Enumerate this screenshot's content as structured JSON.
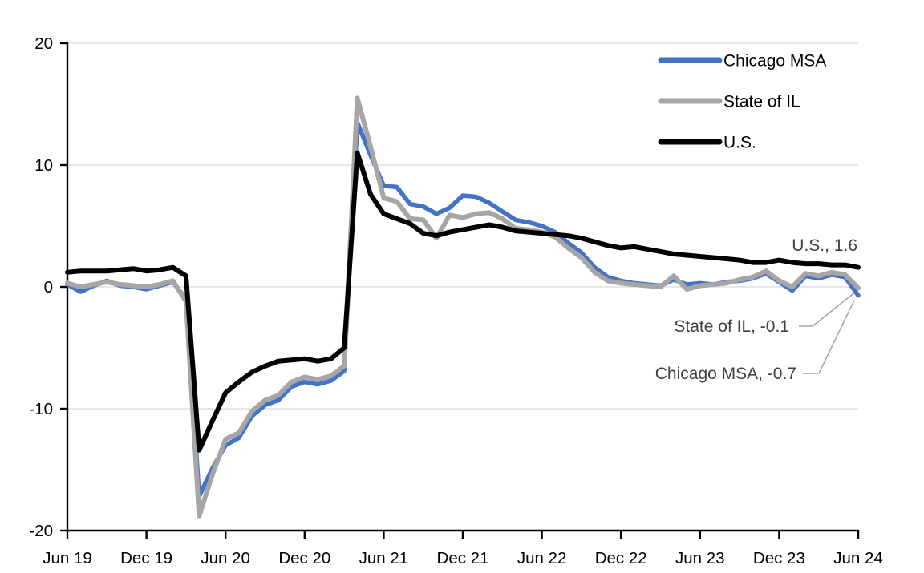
{
  "chart_data": {
    "type": "line",
    "title": "",
    "xlabel": "",
    "ylabel": "",
    "ylim": [
      -20,
      20
    ],
    "y_ticks": [
      20,
      10,
      0,
      -10,
      -20
    ],
    "grid": "horizontal",
    "grid_values": [
      20,
      10,
      0,
      -10
    ],
    "legend_position": "top-right-inside",
    "x_tick_labels": [
      "Jun 19",
      "Dec 19",
      "Jun 20",
      "Dec 20",
      "Jun 21",
      "Dec 21",
      "Jun 22",
      "Dec 22",
      "Jun 23",
      "Dec 23",
      "Jun 24"
    ],
    "x": [
      "Jun-19",
      "Jul-19",
      "Aug-19",
      "Sep-19",
      "Oct-19",
      "Nov-19",
      "Dec-19",
      "Jan-20",
      "Feb-20",
      "Mar-20",
      "Apr-20",
      "May-20",
      "Jun-20",
      "Jul-20",
      "Aug-20",
      "Sep-20",
      "Oct-20",
      "Nov-20",
      "Dec-20",
      "Jan-21",
      "Feb-21",
      "Mar-21",
      "Apr-21",
      "May-21",
      "Jun-21",
      "Jul-21",
      "Aug-21",
      "Sep-21",
      "Oct-21",
      "Nov-21",
      "Dec-21",
      "Jan-22",
      "Feb-22",
      "Mar-22",
      "Apr-22",
      "May-22",
      "Jun-22",
      "Jul-22",
      "Aug-22",
      "Sep-22",
      "Oct-22",
      "Nov-22",
      "Dec-22",
      "Jan-23",
      "Feb-23",
      "Mar-23",
      "Apr-23",
      "May-23",
      "Jun-23",
      "Jul-23",
      "Aug-23",
      "Sep-23",
      "Oct-23",
      "Nov-23",
      "Dec-23",
      "Jan-24",
      "Feb-24",
      "Mar-24",
      "Apr-24",
      "May-24",
      "Jun-24"
    ],
    "series": [
      {
        "name": "Chicago MSA",
        "color": "#4472C4",
        "stroke_width": 5.5,
        "values": [
          0.2,
          -0.4,
          0.1,
          0.5,
          0.1,
          0.0,
          -0.2,
          0.1,
          0.4,
          -1.0,
          -17.2,
          -14.9,
          -13.0,
          -12.4,
          -10.6,
          -9.7,
          -9.3,
          -8.2,
          -7.8,
          -8.0,
          -7.7,
          -6.9,
          13.5,
          10.8,
          8.3,
          8.2,
          6.8,
          6.6,
          6.0,
          6.5,
          7.5,
          7.4,
          6.9,
          6.2,
          5.5,
          5.3,
          5.0,
          4.5,
          3.6,
          2.8,
          1.6,
          0.8,
          0.5,
          0.3,
          0.2,
          0.1,
          0.6,
          0.2,
          0.3,
          0.2,
          0.4,
          0.5,
          0.7,
          1.1,
          0.4,
          -0.3,
          0.9,
          0.7,
          1.0,
          0.8,
          -0.7
        ]
      },
      {
        "name": "State of IL",
        "color": "#A6A6A6",
        "stroke_width": 6,
        "values": [
          0.3,
          0.0,
          0.2,
          0.4,
          0.2,
          0.1,
          0.0,
          0.2,
          0.5,
          -1.2,
          -18.8,
          -15.4,
          -12.5,
          -12.0,
          -10.2,
          -9.3,
          -8.9,
          -7.8,
          -7.4,
          -7.6,
          -7.3,
          -6.5,
          15.5,
          11.5,
          7.3,
          7.0,
          5.6,
          5.5,
          4.0,
          5.9,
          5.7,
          6.0,
          6.1,
          5.6,
          4.8,
          4.7,
          4.5,
          4.1,
          3.2,
          2.4,
          1.2,
          0.5,
          0.3,
          0.2,
          0.1,
          0.0,
          0.9,
          -0.2,
          0.1,
          0.2,
          0.3,
          0.6,
          0.8,
          1.3,
          0.5,
          0.0,
          1.1,
          0.9,
          1.2,
          1.0,
          -0.1
        ]
      },
      {
        "name": "U.S.",
        "color": "#000000",
        "stroke_width": 6,
        "values": [
          1.2,
          1.3,
          1.3,
          1.3,
          1.4,
          1.5,
          1.3,
          1.4,
          1.6,
          0.9,
          -13.4,
          -11.0,
          -8.7,
          -7.8,
          -7.0,
          -6.5,
          -6.1,
          -6.0,
          -5.9,
          -6.1,
          -5.9,
          -5.0,
          11.0,
          7.6,
          6.0,
          5.6,
          5.2,
          4.4,
          4.2,
          4.5,
          4.7,
          4.9,
          5.1,
          4.9,
          4.6,
          4.5,
          4.4,
          4.3,
          4.2,
          4.0,
          3.7,
          3.4,
          3.2,
          3.3,
          3.1,
          2.9,
          2.7,
          2.6,
          2.5,
          2.4,
          2.3,
          2.2,
          2.0,
          2.0,
          2.2,
          2.0,
          1.9,
          1.9,
          1.8,
          1.8,
          1.6
        ]
      }
    ],
    "legend": [
      {
        "label": "Chicago MSA",
        "color": "#4472C4"
      },
      {
        "label": "State of IL",
        "color": "#A6A6A6"
      },
      {
        "label": "U.S.",
        "color": "#000000"
      }
    ],
    "annotations": [
      {
        "text": "U.S., 1.6",
        "series": "U.S.",
        "value": 1.6,
        "leader": false
      },
      {
        "text": "State of IL, -0.1",
        "series": "State of IL",
        "value": -0.1,
        "leader": true
      },
      {
        "text": "Chicago MSA, -0.7",
        "series": "Chicago MSA",
        "value": -0.7,
        "leader": true
      }
    ],
    "colors": {
      "axis": "#000000",
      "gridline": "#D9D9D9",
      "tick_label": "#000000",
      "annotation_text": "#404040",
      "leader_line": "#A6A6A6",
      "background": "#FFFFFF"
    }
  }
}
